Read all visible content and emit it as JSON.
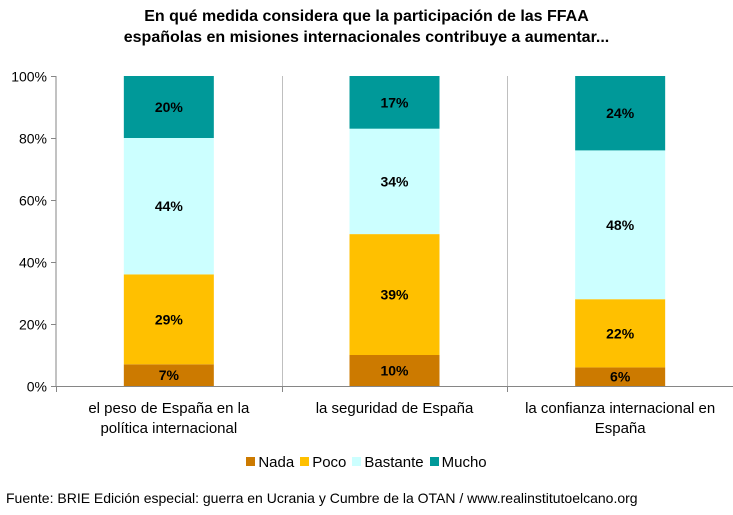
{
  "chart_data": {
    "type": "bar",
    "stacked": true,
    "title_lines": [
      "En qué medida considera que la participación de las FFAA",
      "españolas en misiones internacionales contribuye a aumentar..."
    ],
    "categories": [
      [
        "el peso de España en la",
        "política internacional"
      ],
      [
        "la seguridad de España"
      ],
      [
        "la confianza internacional en",
        "España"
      ]
    ],
    "series": [
      {
        "name": "Nada",
        "color": "#CC7A00",
        "values": [
          7,
          10,
          6
        ],
        "labels": [
          "7%",
          "10%",
          "6%"
        ]
      },
      {
        "name": "Poco",
        "color": "#FFC000",
        "values": [
          29,
          39,
          22
        ],
        "labels": [
          "29%",
          "39%",
          "22%"
        ]
      },
      {
        "name": "Bastante",
        "color": "#CCFFFF",
        "values": [
          44,
          34,
          48
        ],
        "labels": [
          "44%",
          "34%",
          "48%"
        ]
      },
      {
        "name": "Mucho",
        "color": "#009999",
        "values": [
          20,
          17,
          24
        ],
        "labels": [
          "20%",
          "17%",
          "24%"
        ]
      }
    ],
    "y_ticks": [
      "0%",
      "20%",
      "40%",
      "60%",
      "80%",
      "100%"
    ],
    "ylim": [
      0,
      100
    ],
    "xlabel": "",
    "ylabel": "",
    "grid": false,
    "legend_position": "bottom"
  },
  "source": "Fuente: BRIE Edición especial: guerra en Ucrania y Cumbre de la OTAN / www.realinstitutoelcano.org"
}
